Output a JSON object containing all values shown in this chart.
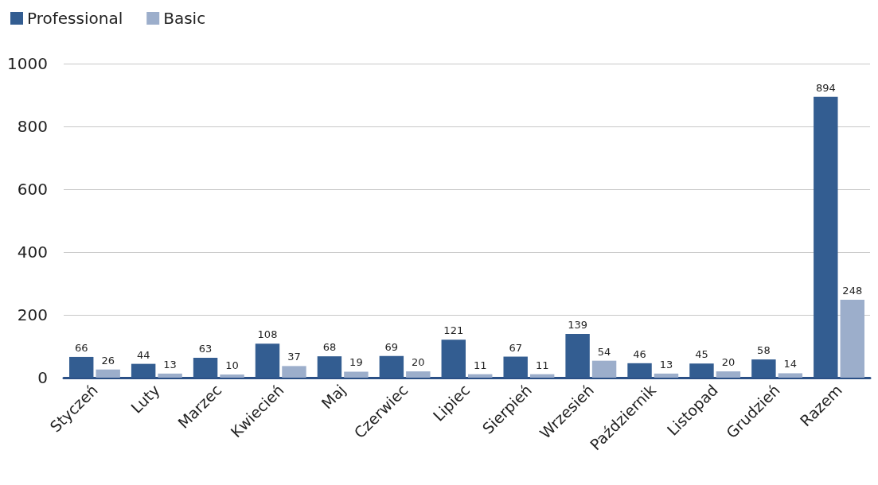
{
  "chart_data": {
    "type": "bar",
    "categories": [
      "Styczeń",
      "Luty",
      "Marzec",
      "Kwiecień",
      "Maj",
      "Czerwiec",
      "Lipiec",
      "Sierpień",
      "Wrzesień",
      "Październik",
      "Listopad",
      "Grudzień",
      "Razem"
    ],
    "series": [
      {
        "name": "Professional",
        "color": "#335d91",
        "values": [
          66,
          44,
          63,
          108,
          68,
          69,
          121,
          67,
          139,
          46,
          45,
          58,
          894
        ]
      },
      {
        "name": "Basic",
        "color": "#9caecb",
        "values": [
          26,
          13,
          10,
          37,
          19,
          20,
          11,
          11,
          54,
          13,
          20,
          14,
          248
        ]
      }
    ],
    "ylim": [
      0,
      1000
    ],
    "yticks": [
      0,
      200,
      400,
      600,
      800,
      1000
    ],
    "grid": "y",
    "legend": "top left",
    "data_labels": true
  }
}
